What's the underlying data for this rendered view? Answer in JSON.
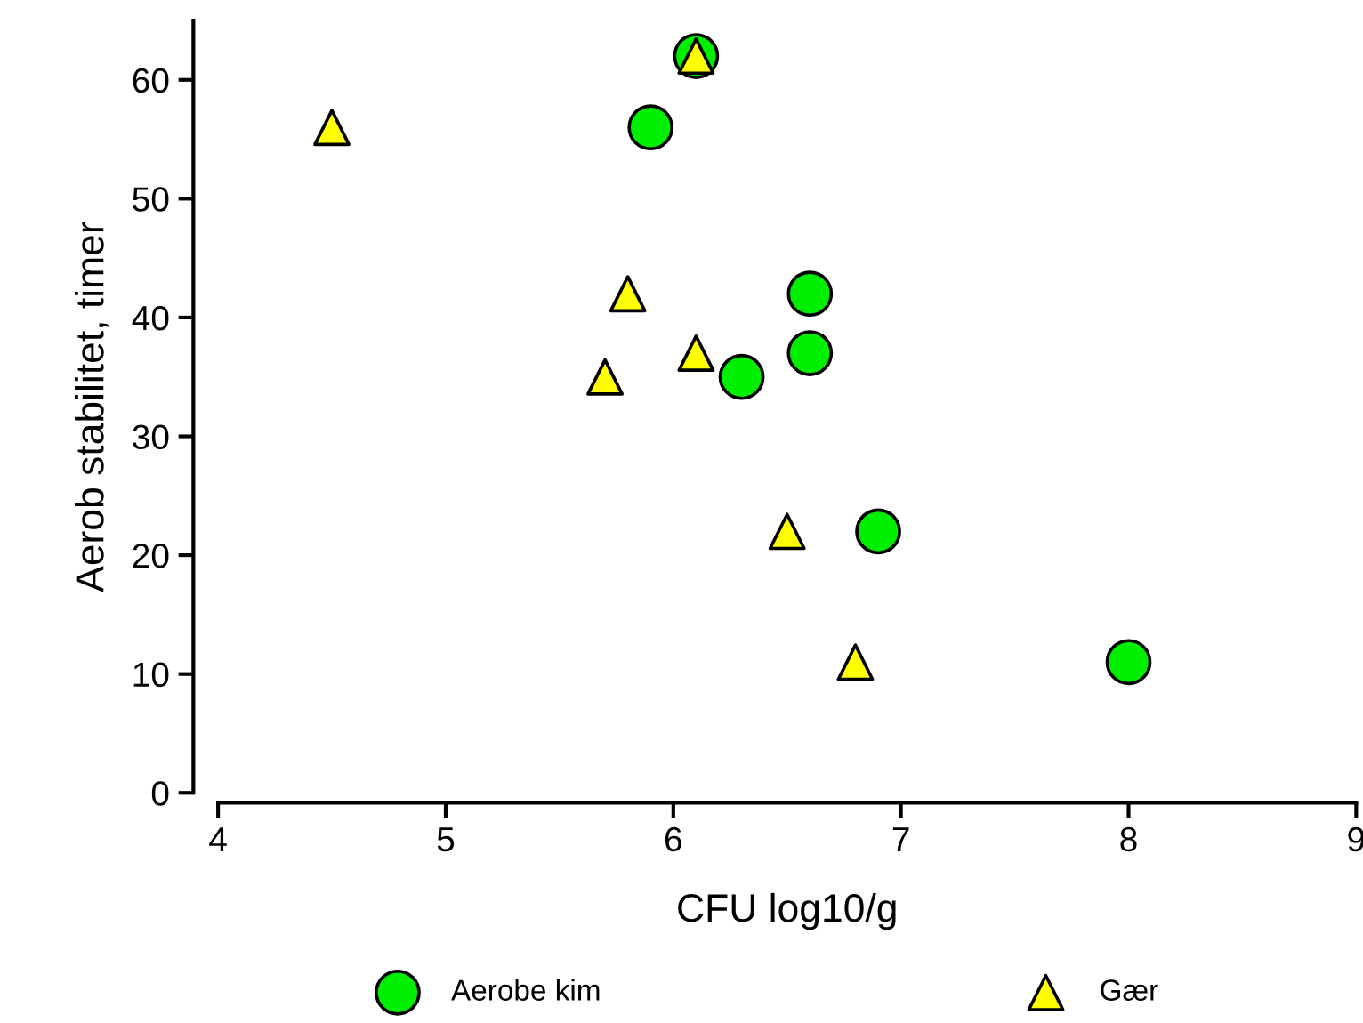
{
  "chart_data": {
    "type": "scatter",
    "xlabel": "CFU log10/g",
    "ylabel": "Aerob stabilitet, timer",
    "xlim": [
      4,
      9
    ],
    "xticks": [
      4,
      5,
      6,
      7,
      8,
      9
    ],
    "ylim": [
      0,
      65
    ],
    "yticks": [
      0,
      10,
      20,
      30,
      40,
      50,
      60
    ],
    "grid": false,
    "legend": "bottom",
    "series": [
      {
        "name": "Aerobe kim",
        "color": "#00ee00",
        "marker": "circle",
        "x": [
          6.1,
          5.9,
          6.6,
          6.6,
          6.3,
          6.9,
          8
        ],
        "values": [
          62,
          56,
          42,
          37,
          35,
          22,
          11
        ]
      },
      {
        "name": "Gær",
        "color": "#ffff00",
        "marker": "triangle",
        "x": [
          4.5,
          6.1,
          5.8,
          6.1,
          5.7,
          6.5,
          6.8
        ],
        "values": [
          56,
          62,
          42,
          37,
          35,
          22,
          11
        ]
      }
    ]
  }
}
